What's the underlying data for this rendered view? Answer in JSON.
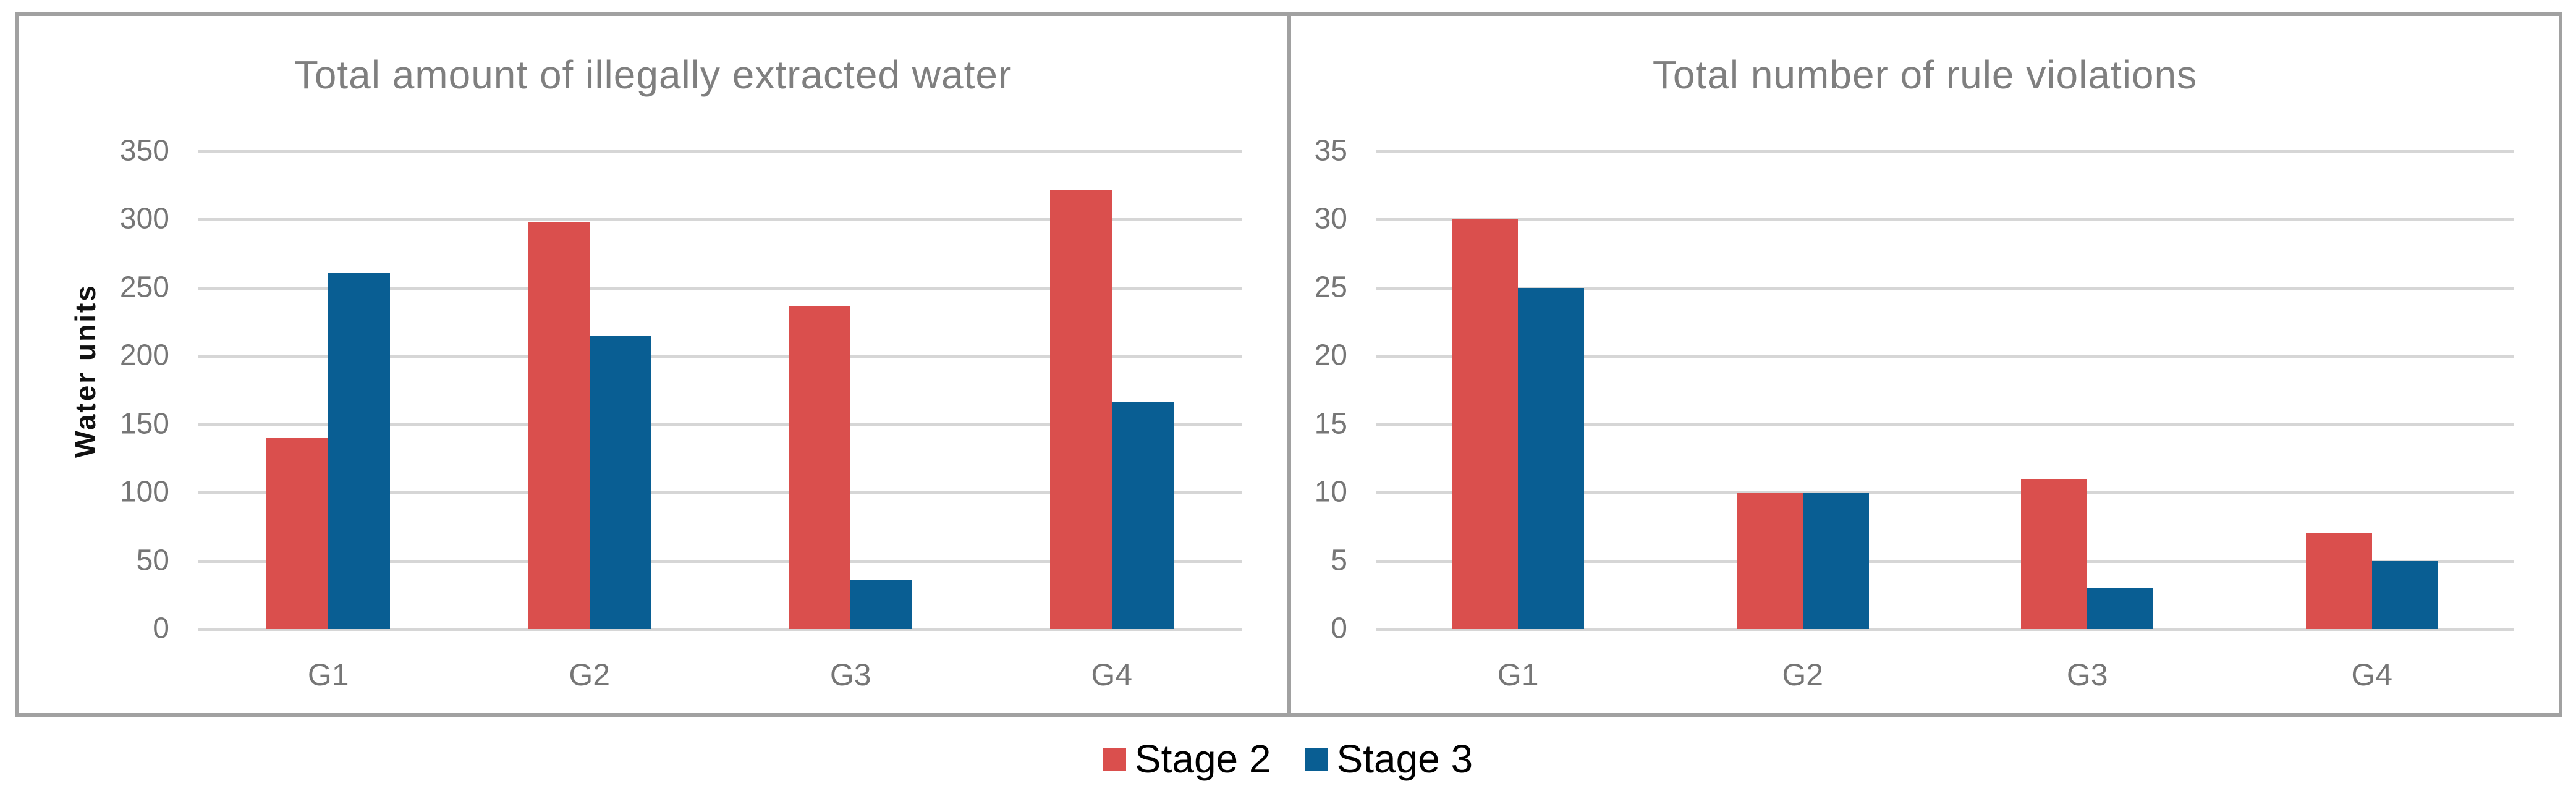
{
  "colors": {
    "stage2": "#DA4F4D",
    "stage3": "#095E93",
    "grid": "#D6D6D6",
    "axis_text": "#767676",
    "title_text": "#7F7F7F",
    "panel_border": "#A1A1A1",
    "legend_text": "#000000"
  },
  "legend": {
    "items": [
      {
        "label": "Stage 2",
        "color_key": "stage2"
      },
      {
        "label": "Stage 3",
        "color_key": "stage3"
      }
    ]
  },
  "chart_data": [
    {
      "type": "bar",
      "title": "Total amount of illegally extracted water",
      "xlabel": "",
      "ylabel": "Water units",
      "categories": [
        "G1",
        "G2",
        "G3",
        "G4"
      ],
      "series": [
        {
          "name": "Stage 2",
          "color_key": "stage2",
          "values": [
            140,
            298,
            237,
            322
          ]
        },
        {
          "name": "Stage 3",
          "color_key": "stage3",
          "values": [
            261,
            215,
            36,
            166
          ]
        }
      ],
      "ylim": [
        0,
        350
      ],
      "ytick_step": 50,
      "grid": true,
      "legend_position": "bottom-shared"
    },
    {
      "type": "bar",
      "title": "Total number of rule violations",
      "xlabel": "",
      "ylabel": "",
      "categories": [
        "G1",
        "G2",
        "G3",
        "G4"
      ],
      "series": [
        {
          "name": "Stage 2",
          "color_key": "stage2",
          "values": [
            30,
            10,
            11,
            7
          ]
        },
        {
          "name": "Stage 3",
          "color_key": "stage3",
          "values": [
            25,
            10,
            3,
            5
          ]
        }
      ],
      "ylim": [
        0,
        35
      ],
      "ytick_step": 5,
      "grid": true,
      "legend_position": "bottom-shared"
    }
  ]
}
